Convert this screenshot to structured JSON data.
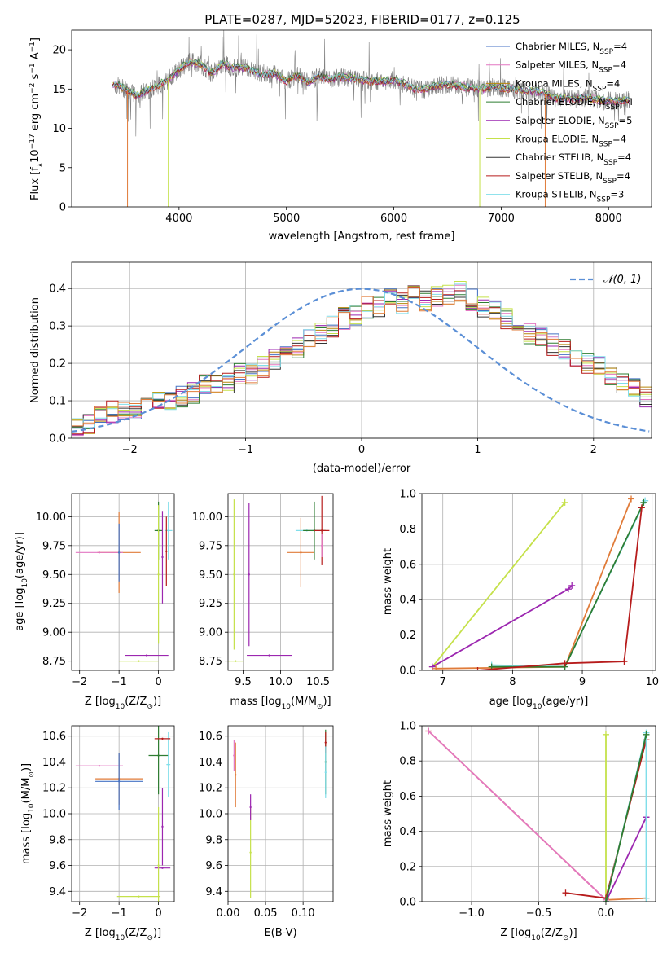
{
  "figure": {
    "title": "PLATE=0287, MJD=52023, FIBERID=0177, z=0.125"
  },
  "chart_data": [
    {
      "id": "spectrum",
      "type": "line",
      "title": "PLATE=0287, MJD=52023, FIBERID=0177, z=0.125",
      "xlabel": "wavelength [Angstrom, rest frame]",
      "ylabel": "Flux [f",
      "ylabel_sub": "λ",
      "ylabel_rest": "10",
      "ylabel_exp1": "−17",
      "ylabel_mid": " erg cm",
      "ylabel_exp2": "−2",
      "ylabel_mid2": " s",
      "ylabel_exp3": "−1",
      "ylabel_end": " A",
      "ylabel_exp4": "−1",
      "ylabel_close": "]",
      "xlim": [
        3000,
        8400
      ],
      "ylim": [
        0,
        22.5
      ],
      "xticks": [
        "4000",
        "5000",
        "6000",
        "7000",
        "8000"
      ],
      "xtick_values": [
        4000,
        5000,
        6000,
        7000,
        8000
      ],
      "yticks": [
        "0",
        "5",
        "10",
        "15",
        "20"
      ],
      "ytick_values": [
        0,
        5,
        10,
        15,
        20
      ],
      "grid": false,
      "legend_position": "top-right",
      "legend": [
        {
          "label": "Chabrier MILES, N",
          "sub": "SSP",
          "tail": "=4",
          "color": "#4472c4"
        },
        {
          "label": "Salpeter MILES, N",
          "sub": "SSP",
          "tail": "=4",
          "color": "#e377c2"
        },
        {
          "label": "Kroupa MILES, N",
          "sub": "SSP",
          "tail": "=4",
          "color": "#b8860b"
        },
        {
          "label": "Chabrier ELODIE, N",
          "sub": "SSP",
          "tail": "=4",
          "color": "#2e7d32"
        },
        {
          "label": "Salpeter ELODIE, N",
          "sub": "SSP",
          "tail": "=5",
          "color": "#9c27b0"
        },
        {
          "label": "Kroupa ELODIE, N",
          "sub": "SSP",
          "tail": "=4",
          "color": "#c5e14a"
        },
        {
          "label": "Chabrier STELIB, N",
          "sub": "SSP",
          "tail": "=4",
          "color": "#333333"
        },
        {
          "label": "Salpeter STELIB, N",
          "sub": "SSP",
          "tail": "=4",
          "color": "#b71c1c"
        },
        {
          "label": "Kroupa STELIB, N",
          "sub": "SSP",
          "tail": "=3",
          "color": "#80deea"
        }
      ],
      "data_color": "#808080",
      "model_x": [
        3350,
        3400,
        3500,
        3600,
        3700,
        3800,
        3900,
        4000,
        4100,
        4200,
        4300,
        4400,
        4500,
        4600,
        4700,
        4800,
        4900,
        5000,
        5100,
        5200,
        5300,
        5400,
        5500,
        5600,
        5700,
        5800,
        5900,
        6000,
        6100,
        6200,
        6300,
        6400,
        6500,
        6600,
        6700,
        6800,
        6900,
        7000,
        7100,
        7200,
        7300,
        7400,
        7500,
        7600,
        7700,
        7800,
        7900,
        8000,
        8100,
        8200
      ],
      "model_y": [
        15.2,
        15.6,
        15.0,
        14.2,
        14.8,
        15.4,
        16.2,
        17.5,
        18.5,
        18.2,
        17.0,
        18.2,
        17.8,
        17.8,
        17.2,
        16.8,
        17.0,
        16.0,
        16.8,
        15.8,
        16.6,
        16.2,
        16.5,
        16.4,
        16.2,
        16.0,
        16.0,
        16.2,
        15.6,
        15.0,
        15.0,
        15.4,
        15.6,
        15.4,
        15.2,
        15.0,
        15.2,
        15.2,
        15.0,
        14.8,
        14.8,
        14.4,
        13.9,
        13.8,
        13.8,
        13.9,
        13.6,
        13.5,
        13.5,
        13.6
      ],
      "model_offsets": [
        0.0,
        0.15,
        -0.1,
        0.2,
        -0.2,
        0.1,
        0.05,
        -0.15,
        0.1
      ],
      "data_x_range": [
        3400,
        8200
      ],
      "spikes": [
        {
          "x": 3520,
          "y": 0
        },
        {
          "x": 3900,
          "y": 0
        },
        {
          "x": 6800,
          "y": 0
        },
        {
          "x": 7410,
          "y": 0
        }
      ]
    },
    {
      "id": "residuals",
      "type": "histogram",
      "xlabel": "(data-model)/error",
      "ylabel": "Normed distribution",
      "xlim": [
        -2.5,
        2.5
      ],
      "ylim": [
        0,
        0.47
      ],
      "xticks": [
        "−2",
        "−1",
        "0",
        "1",
        "2"
      ],
      "xtick_values": [
        -2,
        -1,
        0,
        1,
        2
      ],
      "yticks": [
        "0.0",
        "0.1",
        "0.2",
        "0.3",
        "0.4"
      ],
      "ytick_values": [
        0,
        0.1,
        0.2,
        0.3,
        0.4
      ],
      "grid": true,
      "legend_position": "top-right",
      "gaussian_label": "𝒩(0, 1)",
      "gaussian_color": "#5b8fd6",
      "bin_width": 0.1,
      "bin_start": -2.5,
      "base_values": [
        0.03,
        0.04,
        0.06,
        0.07,
        0.07,
        0.08,
        0.09,
        0.1,
        0.1,
        0.11,
        0.12,
        0.14,
        0.14,
        0.15,
        0.17,
        0.17,
        0.19,
        0.21,
        0.23,
        0.24,
        0.27,
        0.28,
        0.3,
        0.32,
        0.33,
        0.35,
        0.35,
        0.37,
        0.36,
        0.38,
        0.37,
        0.38,
        0.38,
        0.39,
        0.37,
        0.35,
        0.34,
        0.32,
        0.31,
        0.28,
        0.27,
        0.25,
        0.24,
        0.22,
        0.2,
        0.19,
        0.17,
        0.15,
        0.14,
        0.11
      ],
      "series_colors": [
        "#4472c4",
        "#e377c2",
        "#b8860b",
        "#2e7d32",
        "#9c27b0",
        "#c5e14a",
        "#333333",
        "#b71c1c",
        "#80deea",
        "#e07b39"
      ]
    },
    {
      "id": "age_vs_Z",
      "type": "scatter",
      "xlabel": "Z [log",
      "xlabel_sub": "10",
      "xlabel_rest": "(Z/Z",
      "xlabel_sun": "⊙",
      "xlabel_close": ")]",
      "ylabel": "age  [log",
      "ylabel_sub": "10",
      "ylabel_rest": "(age/yr)]",
      "xlim": [
        -2.2,
        0.4
      ],
      "ylim": [
        8.67,
        10.2
      ],
      "xticks": [
        "−2",
        "−1",
        "0"
      ],
      "xtick_values": [
        -2,
        -1,
        0
      ],
      "yticks": [
        "8.75",
        "9.00",
        "9.25",
        "9.50",
        "9.75",
        "10.00"
      ],
      "ytick_values": [
        8.75,
        9.0,
        9.25,
        9.5,
        9.75,
        10.0
      ],
      "grid": true,
      "points": [
        {
          "x": -1.0,
          "y": 9.69,
          "xerr": 0.55,
          "yerr": 0.35,
          "color": "#e07b39"
        },
        {
          "x": -1.5,
          "y": 9.69,
          "xerr": 0.6,
          "yerr": 0.0,
          "color": "#e377c2"
        },
        {
          "x": -1.0,
          "y": 9.69,
          "xerr": 0.0,
          "yerr": 0.25,
          "color": "#4472c4"
        },
        {
          "x": 0.0,
          "y": 9.88,
          "xerr": 0.1,
          "yerr": 0.25,
          "color": "#2e7d32"
        },
        {
          "x": 0.25,
          "y": 9.88,
          "xerr": 0.1,
          "yerr": 0.25,
          "color": "#80deea"
        },
        {
          "x": 0.2,
          "y": 9.7,
          "xerr": 0.0,
          "yerr": 0.3,
          "color": "#b71c1c"
        },
        {
          "x": 0.1,
          "y": 9.65,
          "xerr": 0.0,
          "yerr": 0.4,
          "color": "#9c27b0"
        },
        {
          "x": 0.0,
          "y": 9.5,
          "xerr": 0.0,
          "yerr": 0.6,
          "color": "#c5e14a"
        },
        {
          "x": -0.3,
          "y": 8.8,
          "xerr": 0.55,
          "yerr": 0.0,
          "color": "#9c27b0"
        },
        {
          "x": -0.5,
          "y": 8.75,
          "xerr": 0.5,
          "yerr": 0.0,
          "color": "#c5e14a"
        }
      ]
    },
    {
      "id": "age_vs_mass",
      "type": "scatter",
      "xlabel": "mass [log",
      "xlabel_sub": "10",
      "xlabel_rest": "(M/M",
      "xlabel_sun": "⊙",
      "xlabel_close": ")]",
      "xlim": [
        9.3,
        10.7
      ],
      "ylim": [
        8.67,
        10.2
      ],
      "xticks": [
        "9.5",
        "10.0",
        "10.5"
      ],
      "xtick_values": [
        9.5,
        10.0,
        10.5
      ],
      "yticks": [
        "8.75",
        "9.00",
        "9.25",
        "9.50",
        "9.75",
        "10.00"
      ],
      "ytick_values": [
        8.75,
        9.0,
        9.25,
        9.5,
        9.75,
        10.0
      ],
      "grid": true,
      "points": [
        {
          "x": 10.27,
          "y": 9.69,
          "xerr": 0.18,
          "yerr": 0.3,
          "color": "#e07b39"
        },
        {
          "x": 10.35,
          "y": 9.88,
          "xerr": 0.15,
          "yerr": 0.0,
          "color": "#80deea"
        },
        {
          "x": 10.45,
          "y": 9.88,
          "xerr": 0.15,
          "yerr": 0.25,
          "color": "#2e7d32"
        },
        {
          "x": 10.55,
          "y": 9.88,
          "xerr": 0.1,
          "yerr": 0.3,
          "color": "#b71c1c"
        },
        {
          "x": 10.55,
          "y": 9.75,
          "xerr": 0.0,
          "yerr": 0.1,
          "color": "#e377c2"
        },
        {
          "x": 9.58,
          "y": 9.5,
          "xerr": 0.0,
          "yerr": 0.62,
          "color": "#9c27b0"
        },
        {
          "x": 9.85,
          "y": 8.8,
          "xerr": 0.3,
          "yerr": 0.0,
          "color": "#9c27b0"
        },
        {
          "x": 9.38,
          "y": 9.5,
          "xerr": 0.0,
          "yerr": 0.65,
          "color": "#c5e14a"
        },
        {
          "x": 9.4,
          "y": 8.75,
          "xerr": 0.1,
          "yerr": 0.0,
          "color": "#c5e14a"
        }
      ]
    },
    {
      "id": "weight_vs_age",
      "type": "line",
      "xlabel": "age  [log",
      "xlabel_sub": "10",
      "xlabel_rest": "(age/yr)]",
      "ylabel": "mass weight",
      "xlim": [
        6.7,
        10.05
      ],
      "ylim": [
        0,
        1.0
      ],
      "xticks": [
        "7",
        "8",
        "9",
        "10"
      ],
      "xtick_values": [
        7,
        8,
        9,
        10
      ],
      "yticks": [
        "0.0",
        "0.2",
        "0.4",
        "0.6",
        "0.8",
        "1.0"
      ],
      "ytick_values": [
        0,
        0.2,
        0.4,
        0.6,
        0.8,
        1.0
      ],
      "grid": true,
      "series": [
        {
          "color": "#c5e14a",
          "x": [
            6.85,
            8.75
          ],
          "y": [
            0.02,
            0.95
          ]
        },
        {
          "color": "#9c27b0",
          "x": [
            6.85,
            8.8,
            8.85
          ],
          "y": [
            0.02,
            0.46,
            0.48
          ]
        },
        {
          "color": "#e07b39",
          "x": [
            6.9,
            8.75,
            9.7
          ],
          "y": [
            0.01,
            0.02,
            0.97
          ]
        },
        {
          "color": "#80deea",
          "x": [
            7.7,
            8.75,
            9.9
          ],
          "y": [
            0.03,
            0.02,
            0.96
          ]
        },
        {
          "color": "#2e7d32",
          "x": [
            7.7,
            8.75,
            9.88
          ],
          "y": [
            0.02,
            0.02,
            0.95
          ]
        },
        {
          "color": "#b71c1c",
          "x": [
            7.5,
            8.75,
            9.6,
            9.85
          ],
          "y": [
            0.0,
            0.04,
            0.05,
            0.92
          ]
        }
      ]
    },
    {
      "id": "mass_vs_Z",
      "type": "scatter",
      "xlabel": "Z [log",
      "xlabel_sub": "10",
      "xlabel_rest": "(Z/Z",
      "xlabel_sun": "⊙",
      "xlabel_close": ")]",
      "ylabel": "mass [log",
      "ylabel_sub": "10",
      "ylabel_rest": "(M/M",
      "ylabel_sun": "⊙",
      "ylabel_close": ")]",
      "xlim": [
        -2.2,
        0.4
      ],
      "ylim": [
        9.32,
        10.68
      ],
      "xticks": [
        "−2",
        "−1",
        "0"
      ],
      "xtick_values": [
        -2,
        -1,
        0
      ],
      "yticks": [
        "9.4",
        "9.6",
        "9.8",
        "10.0",
        "10.2",
        "10.4",
        "10.6"
      ],
      "ytick_values": [
        9.4,
        9.6,
        9.8,
        10.0,
        10.2,
        10.4,
        10.6
      ],
      "grid": true,
      "points": [
        {
          "x": -1.0,
          "y": 10.27,
          "xerr": 0.6,
          "yerr": 0.2,
          "color": "#e07b39"
        },
        {
          "x": -1.5,
          "y": 10.37,
          "xerr": 0.6,
          "yerr": 0.0,
          "color": "#e377c2"
        },
        {
          "x": -1.0,
          "y": 10.25,
          "xerr": 0.6,
          "yerr": 0.22,
          "color": "#4472c4"
        },
        {
          "x": 0.0,
          "y": 10.45,
          "xerr": 0.25,
          "yerr": 0.3,
          "color": "#2e7d32"
        },
        {
          "x": 0.25,
          "y": 10.38,
          "xerr": 0.05,
          "yerr": 0.25,
          "color": "#80deea"
        },
        {
          "x": 0.1,
          "y": 10.58,
          "xerr": 0.2,
          "yerr": 0.0,
          "color": "#b71c1c"
        },
        {
          "x": 0.1,
          "y": 9.58,
          "xerr": 0.2,
          "yerr": 0.0,
          "color": "#9c27b0"
        },
        {
          "x": 0.1,
          "y": 9.9,
          "xerr": 0.0,
          "yerr": 0.3,
          "color": "#9c27b0"
        },
        {
          "x": -0.5,
          "y": 9.36,
          "xerr": 0.55,
          "yerr": 0.0,
          "color": "#c5e14a"
        },
        {
          "x": 0.0,
          "y": 9.6,
          "xerr": 0.0,
          "yerr": 0.45,
          "color": "#c5e14a"
        }
      ]
    },
    {
      "id": "mass_vs_EBV",
      "type": "scatter",
      "xlabel": "E(B-V)",
      "xlim": [
        0.0,
        0.14
      ],
      "ylim": [
        9.32,
        10.68
      ],
      "xticks": [
        "0.00",
        "0.05",
        "0.10"
      ],
      "xtick_values": [
        0.0,
        0.05,
        0.1
      ],
      "yticks": [
        "9.4",
        "9.6",
        "9.8",
        "10.0",
        "10.2",
        "10.4",
        "10.6"
      ],
      "ytick_values": [
        9.4,
        9.6,
        9.8,
        10.0,
        10.2,
        10.4,
        10.6
      ],
      "grid": true,
      "points": [
        {
          "x": 0.01,
          "y": 10.3,
          "xerr": 0.0,
          "yerr": 0.25,
          "color": "#e07b39"
        },
        {
          "x": 0.008,
          "y": 10.45,
          "xerr": 0.0,
          "yerr": 0.12,
          "color": "#e377c2"
        },
        {
          "x": 0.03,
          "y": 9.7,
          "xerr": 0.0,
          "yerr": 0.35,
          "color": "#c5e14a"
        },
        {
          "x": 0.03,
          "y": 10.05,
          "xerr": 0.0,
          "yerr": 0.1,
          "color": "#9c27b0"
        },
        {
          "x": 0.13,
          "y": 10.4,
          "xerr": 0.0,
          "yerr": 0.25,
          "color": "#2e7d32"
        },
        {
          "x": 0.13,
          "y": 10.55,
          "xerr": 0.0,
          "yerr": 0.08,
          "color": "#b71c1c"
        },
        {
          "x": 0.13,
          "y": 10.32,
          "xerr": 0.0,
          "yerr": 0.2,
          "color": "#80deea"
        }
      ]
    },
    {
      "id": "weight_vs_Z",
      "type": "line",
      "xlabel": "Z [log",
      "xlabel_sub": "10",
      "xlabel_rest": "(Z/Z",
      "xlabel_sun": "⊙",
      "xlabel_close": ")]",
      "ylabel": "mass weight",
      "xlim": [
        -1.37,
        0.37
      ],
      "ylim": [
        0,
        1.0
      ],
      "xticks": [
        "−1.0",
        "−0.5",
        "0.0"
      ],
      "xtick_values": [
        -1.0,
        -0.5,
        0.0
      ],
      "yticks": [
        "0.0",
        "0.2",
        "0.4",
        "0.6",
        "0.8",
        "1.0"
      ],
      "ytick_values": [
        0,
        0.2,
        0.4,
        0.6,
        0.8,
        1.0
      ],
      "grid": true,
      "series": [
        {
          "color": "#e07b39",
          "x": [
            -1.32,
            0.0,
            0.3
          ],
          "y": [
            0.97,
            0.01,
            0.02
          ]
        },
        {
          "color": "#e377c2",
          "x": [
            -1.32,
            0.0
          ],
          "y": [
            0.97,
            0.01
          ]
        },
        {
          "color": "#c5e14a",
          "x": [
            0.0,
            0.0
          ],
          "y": [
            0.0,
            0.95
          ]
        },
        {
          "color": "#9c27b0",
          "x": [
            0.0,
            0.3,
            0.3
          ],
          "y": [
            0.0,
            0.48,
            0.48
          ]
        },
        {
          "color": "#b71c1c",
          "x": [
            -0.3,
            0.0,
            0.3
          ],
          "y": [
            0.05,
            0.02,
            0.92
          ]
        },
        {
          "color": "#80deea",
          "x": [
            0.0,
            0.3,
            0.3
          ],
          "y": [
            0.0,
            0.96,
            0.02
          ]
        },
        {
          "color": "#2e7d32",
          "x": [
            0.0,
            0.3
          ],
          "y": [
            0.0,
            0.95
          ]
        }
      ]
    }
  ]
}
